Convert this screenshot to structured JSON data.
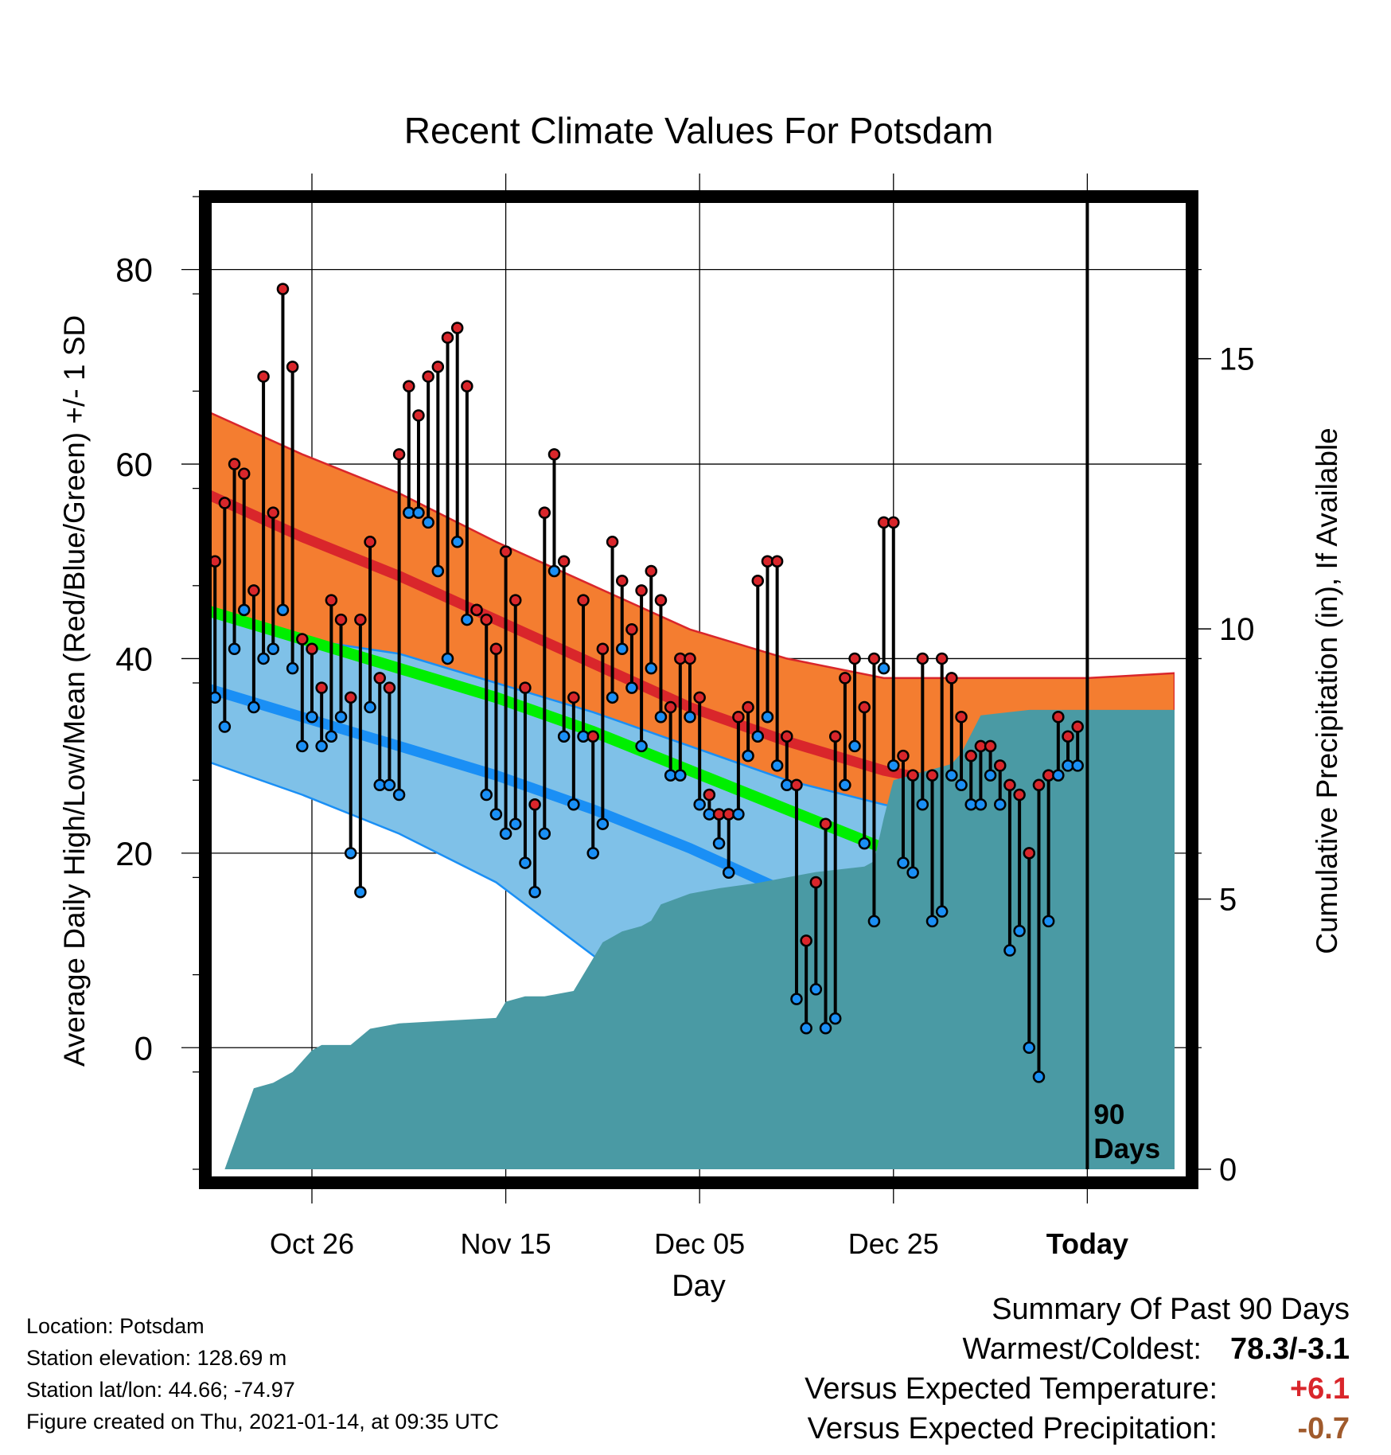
{
  "chart_data": {
    "type": "line",
    "title": "Recent Climate Values For Potsdam",
    "xlabel": "Day",
    "ylabel_left": "Average Daily High/Low/Mean (Red/Blue/Green) +/- 1 SD",
    "ylabel_right": "Cumulative Precipitation (in), If Available",
    "x_ticks": [
      "Oct 26",
      "Nov 15",
      "Dec 05",
      "Dec 25",
      "Today"
    ],
    "x_tick_days": [
      11,
      31,
      51,
      71,
      91
    ],
    "x_range_days": [
      0,
      100
    ],
    "y_ticks_left": [
      "0",
      "20",
      "40",
      "60",
      "80"
    ],
    "ylim_left": [
      -12.5,
      87.5
    ],
    "y_ticks_right": [
      "0",
      "5",
      "10",
      "15"
    ],
    "ylim_right": [
      0,
      18
    ],
    "today_day": 91,
    "today_label_line1": "90",
    "today_label_line2": "Days",
    "normal_high_days": [
      0,
      10,
      20,
      30,
      40,
      50,
      60,
      70,
      80,
      91,
      100
    ],
    "normal_high_mean": [
      57,
      52.5,
      48.5,
      44,
      39.5,
      35,
      31.5,
      28.5,
      26.5,
      26,
      26.5
    ],
    "normal_high_upper": [
      65.5,
      61,
      57,
      52,
      47.5,
      43,
      40,
      38,
      38,
      38,
      38.5
    ],
    "normal_mean_days": [
      0,
      10,
      20,
      30,
      40,
      50,
      60,
      70,
      80,
      91,
      100
    ],
    "normal_mean": [
      45,
      42,
      39,
      36,
      32.5,
      28.5,
      24.5,
      20.5,
      17.5,
      15.5,
      15
    ],
    "normal_low_days": [
      0,
      10,
      20,
      30,
      40,
      50,
      60,
      70,
      80,
      91,
      100
    ],
    "normal_low_mean": [
      37,
      34,
      31,
      28,
      24.5,
      20.5,
      16,
      11.5,
      8.5,
      6.8,
      6.5
    ],
    "normal_low_lower": [
      29.5,
      26,
      22,
      17,
      9.5,
      2,
      -4,
      -10,
      -14,
      -17,
      -18
    ],
    "normal_low_upper": [
      44.5,
      42,
      40.5,
      37.5,
      34.5,
      31,
      27.5,
      25,
      23,
      22,
      21.5
    ],
    "daily_highs": [
      50,
      56,
      60,
      59,
      47,
      69,
      55,
      78,
      70,
      42,
      41,
      37,
      46,
      44,
      36,
      44,
      52,
      38,
      37,
      61,
      68,
      65,
      69,
      70,
      73,
      74,
      68,
      45,
      44,
      41,
      51,
      46,
      37,
      25,
      55,
      61,
      50,
      36,
      46,
      32,
      41,
      52,
      48,
      43,
      47,
      49,
      46,
      35,
      40,
      40,
      36,
      26,
      24,
      24,
      34,
      35,
      48,
      50,
      50,
      32,
      27,
      11,
      17,
      23,
      32,
      38,
      40,
      35,
      40,
      54,
      54,
      30,
      28,
      40,
      28,
      40,
      38,
      34,
      30,
      31,
      31,
      29,
      27,
      26,
      20,
      27,
      28,
      34,
      32,
      33
    ],
    "daily_lows": [
      36,
      33,
      41,
      45,
      35,
      40,
      41,
      45,
      39,
      31,
      34,
      31,
      32,
      34,
      20,
      16,
      35,
      27,
      27,
      26,
      55,
      55,
      54,
      49,
      40,
      52,
      44,
      45,
      26,
      24,
      22,
      23,
      19,
      16,
      22,
      49,
      32,
      25,
      32,
      20,
      23,
      36,
      41,
      37,
      31,
      39,
      34,
      28,
      28,
      34,
      25,
      24,
      21,
      18,
      24,
      30,
      32,
      34,
      29,
      27,
      5,
      2,
      6,
      2,
      3,
      27,
      31,
      21,
      13,
      39,
      29,
      19,
      18,
      25,
      13,
      14,
      28,
      27,
      25,
      25,
      28,
      25,
      10,
      12,
      0,
      -3,
      13,
      28,
      29,
      29
    ],
    "cumulative_precip_days": [
      2,
      5,
      7,
      9,
      10,
      11,
      12,
      15,
      17,
      20,
      25,
      30,
      31,
      33,
      35,
      38,
      40,
      41,
      43,
      45,
      46,
      47,
      50,
      53,
      55,
      57,
      60,
      63,
      68,
      69,
      70,
      71,
      73,
      75,
      77,
      78,
      80,
      85,
      91,
      100
    ],
    "cumulative_precip": [
      0.0,
      1.5,
      1.6,
      1.8,
      2.0,
      2.2,
      2.3,
      2.3,
      2.6,
      2.7,
      2.75,
      2.8,
      3.1,
      3.2,
      3.2,
      3.3,
      3.9,
      4.2,
      4.4,
      4.5,
      4.6,
      4.9,
      5.1,
      5.2,
      5.25,
      5.3,
      5.4,
      5.5,
      5.6,
      5.7,
      6.5,
      7.2,
      7.3,
      7.4,
      7.5,
      7.7,
      8.4,
      8.5,
      8.5,
      8.5
    ]
  },
  "footer": {
    "location": "Location: Potsdam",
    "elevation": "Station elevation: 128.69 m",
    "latlon": "Station lat/lon: 44.66; -74.97",
    "created": "Figure created on Thu, 2021-01-14, at 09:35 UTC"
  },
  "summary": {
    "title": "Summary Of Past 90 Days",
    "warmest_coldest_label": "Warmest/Coldest:",
    "warmest_coldest_value": "78.3/-3.1",
    "temp_label": "Versus Expected Temperature:",
    "temp_value": "+6.1",
    "precip_label": "Versus Expected Precipitation:",
    "precip_value": "-0.7"
  },
  "colors": {
    "high_band": "#f47d30",
    "high_line": "#d9262b",
    "mean_band": "#9c1015",
    "mean_line": "#00ef00",
    "low_band": "#7fc1e8",
    "low_line": "#1a8ff5",
    "precip": "#4a9aa4",
    "high_dot": "#d9262b",
    "low_dot": "#1a8ff5",
    "summary_temp": "#d9262b",
    "summary_precip": "#a05a2c"
  }
}
